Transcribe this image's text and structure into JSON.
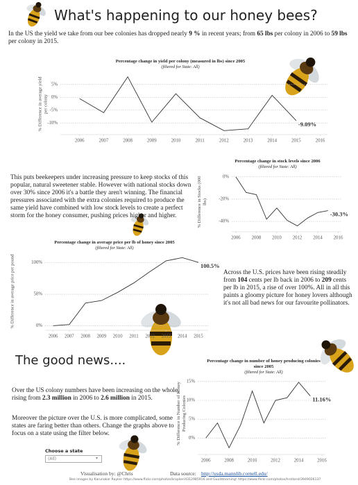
{
  "title": "What's happening to our honey bees?",
  "intro": [
    "In the US the yield we take from our bee colonies has dropped nearly ",
    "9 %",
    " in recent years; from ",
    "65 lbs",
    " per colony in 2006 to ",
    "59 lbs",
    " per colony in 2015."
  ],
  "paragraph_stocks": [
    "This puts beekeepers under increasing pressure to keep stocks of this popular, natural sweetener stable. However with national stocks down over 30% since 2006 it's a battle they aren't winning. The financial pressures associated with the extra colonies required to produce the same yield have combined with low stock levels to create a perfect storm for the honey consumer, pushing prices higher and higher."
  ],
  "paragraph_prices": [
    "Across the U.S. prices have been rising steadily from ",
    "104",
    " cents per lb back in 2006 to ",
    "209",
    " cents per lb in 2015, a rise of over 100%. All in all this paints a gloomy picture for honey lovers although it's not all bad news for our favourite pollinators."
  ],
  "good_news_title": "The good news....",
  "paragraph_colonies": [
    "Over the US colony numbers have been increasing on the whole, rising from ",
    "2.3 million",
    " in 2006 to ",
    "2.6 million",
    " in 2015."
  ],
  "paragraph_states": [
    "Moreover the picture over the U.S. is more complicated, some states are faring better than others. Change the graphs above to focus on a state using the filter below."
  ],
  "filter": {
    "label": "Choose a state",
    "value": "(All)"
  },
  "footer": {
    "credit": "Visualisation by: @Chris",
    "source_label": "Data source:",
    "source_url": "http://usda.mannlib.cornell.edu/",
    "images": "Bee images by Karunakar Rayker https://www.flickr.com/photos/krayker/4312985916 and Guuldmorning! https://www.flickr.com/photos/hrstland/3949026137"
  },
  "chart_data": [
    {
      "type": "line",
      "title": "Percentage change in yield per colony (measured in lbs) since 2005",
      "subtitle": "(filtered for State: All)",
      "y_label": "% Difference in average yield per colony",
      "color": "#333333",
      "grid": true,
      "x": [
        2006,
        2007,
        2008,
        2009,
        2010,
        2011,
        2012,
        2013,
        2014,
        2015
      ],
      "values": [
        -0.5,
        -6,
        8,
        -9.7,
        1.4,
        -8,
        -13,
        -12.3,
        0.8,
        -9.09
      ],
      "value_labels": [
        null,
        null,
        null,
        null,
        null,
        null,
        null,
        null,
        null,
        "-9.09%"
      ],
      "xlim": [
        2005.2,
        2016.3
      ],
      "xticks": [
        2006,
        2007,
        2008,
        2009,
        2010,
        2011,
        2012,
        2013,
        2014,
        2015,
        2016
      ],
      "ylim": [
        -14,
        9
      ],
      "yticks": [
        {
          "value": 5,
          "label": "5%"
        },
        {
          "value": 0,
          "label": "0%"
        },
        {
          "value": -5,
          "label": "-5%"
        },
        {
          "value": -10,
          "label": "-10%"
        }
      ]
    },
    {
      "type": "line",
      "title": "Percentage change in stock levels since 2006",
      "subtitle": "(filtered for State: All)",
      "y_label": "% Difference in Stocks (000 lbs)",
      "color": "#333333",
      "grid": true,
      "x": [
        2006,
        2007,
        2008,
        2009,
        2010,
        2011,
        2012,
        2013,
        2014,
        2015
      ],
      "values": [
        0,
        -14,
        -16,
        -38,
        -28,
        -39,
        -44,
        -37,
        -32,
        -30.3
      ],
      "value_labels": [
        null,
        null,
        null,
        null,
        null,
        null,
        null,
        null,
        null,
        "-30.3%"
      ],
      "xlim": [
        2005.6,
        2016.3
      ],
      "xticks": [
        2006,
        2008,
        2010,
        2012,
        2014,
        2016
      ],
      "ylim": [
        -48,
        3
      ],
      "yticks": [
        {
          "value": 0,
          "label": "0%"
        },
        {
          "value": -20,
          "label": "-20%"
        },
        {
          "value": -40,
          "label": "-40%"
        }
      ]
    },
    {
      "type": "line",
      "title": "Percentage change in average price per lb of honey since 2005",
      "subtitle": "(filtered for State: All)",
      "y_label": "% Difference in average price per pound",
      "color": "#333333",
      "grid": true,
      "x": [
        2006,
        2007,
        2008,
        2009,
        2010,
        2011,
        2012,
        2013,
        2014,
        2015
      ],
      "values": [
        0,
        2,
        36,
        40,
        53,
        68,
        86,
        103,
        108,
        100.5
      ],
      "value_labels": [
        null,
        null,
        null,
        null,
        null,
        null,
        null,
        null,
        null,
        "100.5%"
      ],
      "xlim": [
        2005.5,
        2015.6
      ],
      "xticks": [
        2006,
        2007,
        2008,
        2009,
        2010,
        2011,
        2012,
        2013,
        2014,
        2015
      ],
      "ylim": [
        -5,
        115
      ],
      "yticks": [
        {
          "value": 100,
          "label": "100%"
        },
        {
          "value": 50,
          "label": "50%"
        },
        {
          "value": 0,
          "label": "0%"
        }
      ]
    },
    {
      "type": "line",
      "title": "Percentage change in number of honey producing colonies since 2005",
      "subtitle": "(filtered for State: All)",
      "y_label": "% Difference in Number of Honey Producing Colonies",
      "color": "#333333",
      "grid": true,
      "x": [
        2006,
        2007,
        2008,
        2009,
        2010,
        2011,
        2012,
        2013,
        2014,
        2015
      ],
      "values": [
        0,
        4,
        -2.6,
        3.5,
        12.5,
        4,
        10,
        10.7,
        14.8,
        11.16
      ],
      "value_labels": [
        null,
        null,
        null,
        null,
        null,
        null,
        null,
        null,
        null,
        "11.16%"
      ],
      "xlim": [
        2005.3,
        2016.3
      ],
      "xticks": [
        2006,
        2008,
        2010,
        2012,
        2014,
        2016
      ],
      "ylim": [
        -4,
        17
      ],
      "yticks": [
        {
          "value": 15,
          "label": "15%"
        },
        {
          "value": 10,
          "label": "10%"
        },
        {
          "value": 5,
          "label": "5%"
        },
        {
          "value": 0,
          "label": "0%"
        }
      ]
    }
  ]
}
